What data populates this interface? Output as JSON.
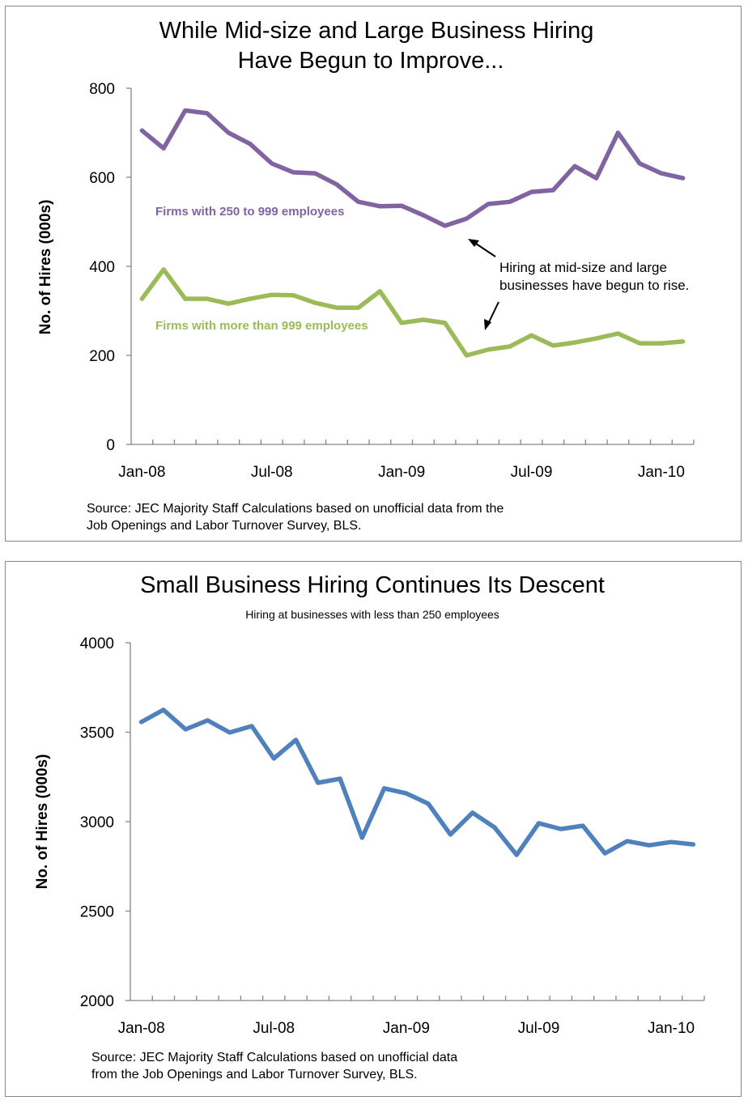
{
  "chart_data": [
    {
      "type": "line",
      "title": [
        "While Mid-size and Large Business Hiring",
        "Have Begun  to Improve..."
      ],
      "subtitle": "",
      "xlabel": "",
      "ylabel": "No. of Hires (000s)",
      "ylim": [
        0,
        800
      ],
      "yticks": [
        "0",
        "200",
        "400",
        "600",
        "800"
      ],
      "xtick_labels": [
        "Jan-08",
        "Jul-08",
        "Jan-09",
        "Jul-09",
        "Jan-10"
      ],
      "categories": [
        "Jan-08",
        "Feb-08",
        "Mar-08",
        "Apr-08",
        "May-08",
        "Jun-08",
        "Jul-08",
        "Aug-08",
        "Sep-08",
        "Oct-08",
        "Nov-08",
        "Dec-08",
        "Jan-09",
        "Feb-09",
        "Mar-09",
        "Apr-09",
        "May-09",
        "Jun-09",
        "Jul-09",
        "Aug-09",
        "Sep-09",
        "Oct-09",
        "Nov-09",
        "Dec-09",
        "Jan-10",
        "Feb-10"
      ],
      "grid": false,
      "series": [
        {
          "name": "Firms with 250 to 999 employees",
          "color": "#8064A2",
          "values": [
            705,
            665,
            750,
            744,
            700,
            675,
            631,
            611,
            609,
            584,
            545,
            535,
            536,
            515,
            491,
            507,
            540,
            545,
            567,
            571,
            625,
            598,
            700,
            631,
            609,
            598
          ]
        },
        {
          "name": "Firms with more than 999 employees",
          "color": "#9BBB59",
          "values": [
            327,
            393,
            327,
            327,
            316,
            327,
            336,
            335,
            318,
            307,
            307,
            344,
            273,
            280,
            273,
            200,
            213,
            220,
            245,
            222,
            229,
            238,
            249,
            227,
            227,
            231
          ]
        }
      ],
      "annotation": [
        "Hiring at mid-size and large",
        "businesses have begun to rise."
      ],
      "source": [
        "Source: JEC Majority Staff Calculations based on unofficial data from the",
        "Job Openings and Labor Turnover Survey, BLS."
      ]
    },
    {
      "type": "line",
      "title": [
        "Small Business Hiring Continues Its Descent"
      ],
      "subtitle": "Hiring at businesses with less than 250 employees",
      "xlabel": "",
      "ylabel": "No. of Hires (000s)",
      "ylim": [
        2000,
        4000
      ],
      "yticks": [
        "2000",
        "2500",
        "3000",
        "3500",
        "4000"
      ],
      "xtick_labels": [
        "Jan-08",
        "Jul-08",
        "Jan-09",
        "Jul-09",
        "Jan-10"
      ],
      "categories": [
        "Jan-08",
        "Feb-08",
        "Mar-08",
        "Apr-08",
        "May-08",
        "Jun-08",
        "Jul-08",
        "Aug-08",
        "Sep-08",
        "Oct-08",
        "Nov-08",
        "Dec-08",
        "Jan-09",
        "Feb-09",
        "Mar-09",
        "Apr-09",
        "May-09",
        "Jun-09",
        "Jul-09",
        "Aug-09",
        "Sep-09",
        "Oct-09",
        "Nov-09",
        "Dec-09",
        "Jan-10",
        "Feb-10"
      ],
      "grid": false,
      "series": [
        {
          "name": "Firms with less than 250 employees",
          "color": "#4F81BD",
          "values": [
            3557,
            3625,
            3516,
            3566,
            3498,
            3534,
            3353,
            3457,
            3217,
            3240,
            2910,
            3186,
            3158,
            3100,
            2928,
            3050,
            2968,
            2814,
            2991,
            2959,
            2977,
            2823,
            2891,
            2868,
            2886,
            2873
          ]
        }
      ],
      "source": [
        "Source: JEC Majority Staff Calculations based on unofficial data",
        "from the Job Openings and Labor Turnover Survey, BLS."
      ]
    }
  ]
}
